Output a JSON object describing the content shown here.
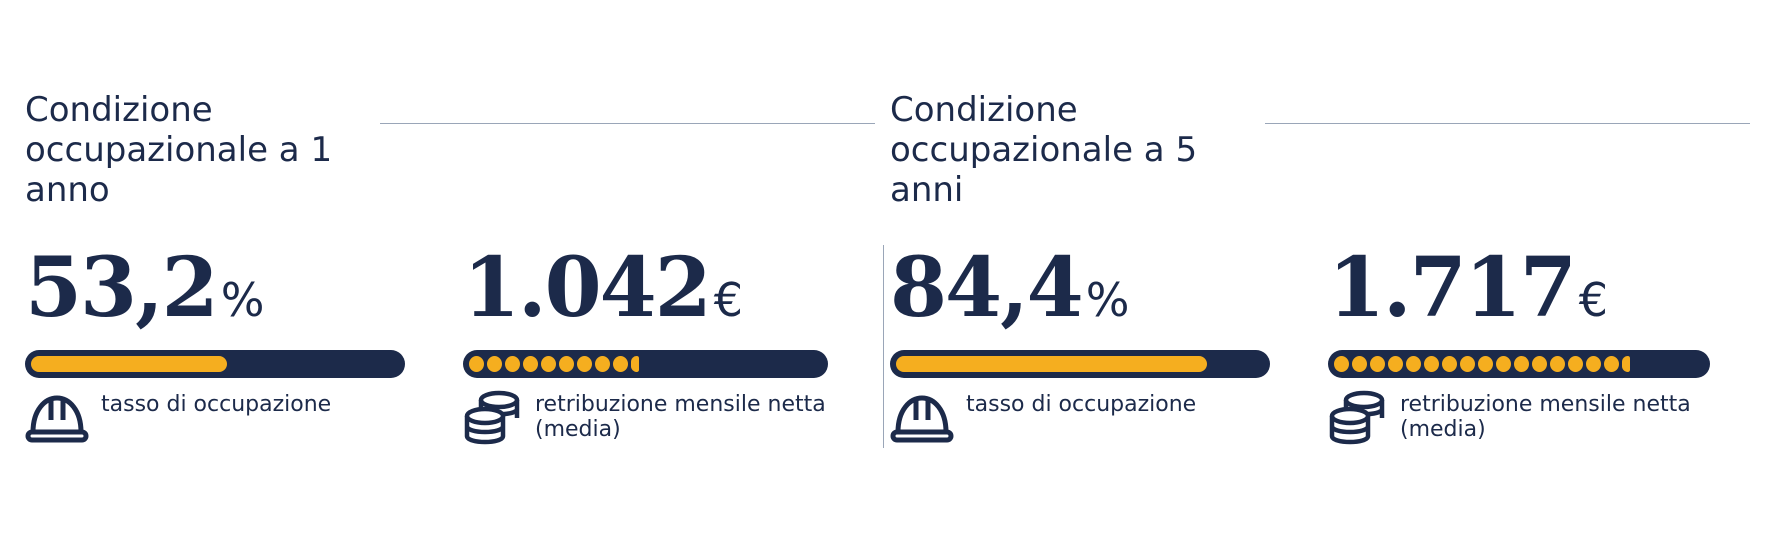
{
  "sections": [
    {
      "title": "Condizione occupazionale a 1 anno",
      "employment": {
        "value": "53,2",
        "unit": "%",
        "fill_fraction": 0.532,
        "label": "tasso di occupazione",
        "icon": "hard-hat-icon"
      },
      "salary": {
        "value": "1.042",
        "unit": "€",
        "coins_shown": 9.5,
        "label": "retribuzione mensile netta (media)",
        "icon": "coin-stack-icon"
      }
    },
    {
      "title": "Condizione occupazionale a 5 anni",
      "employment": {
        "value": "84,4",
        "unit": "%",
        "fill_fraction": 0.844,
        "label": "tasso di occupazione",
        "icon": "hard-hat-icon"
      },
      "salary": {
        "value": "1.717",
        "unit": "€",
        "coins_shown": 16.5,
        "label": "retribuzione mensile netta (media)",
        "icon": "coin-stack-icon"
      }
    }
  ],
  "colors": {
    "navy": "#1c2a4a",
    "accent": "#f5ae1f",
    "rule": "#9aa6b8"
  }
}
